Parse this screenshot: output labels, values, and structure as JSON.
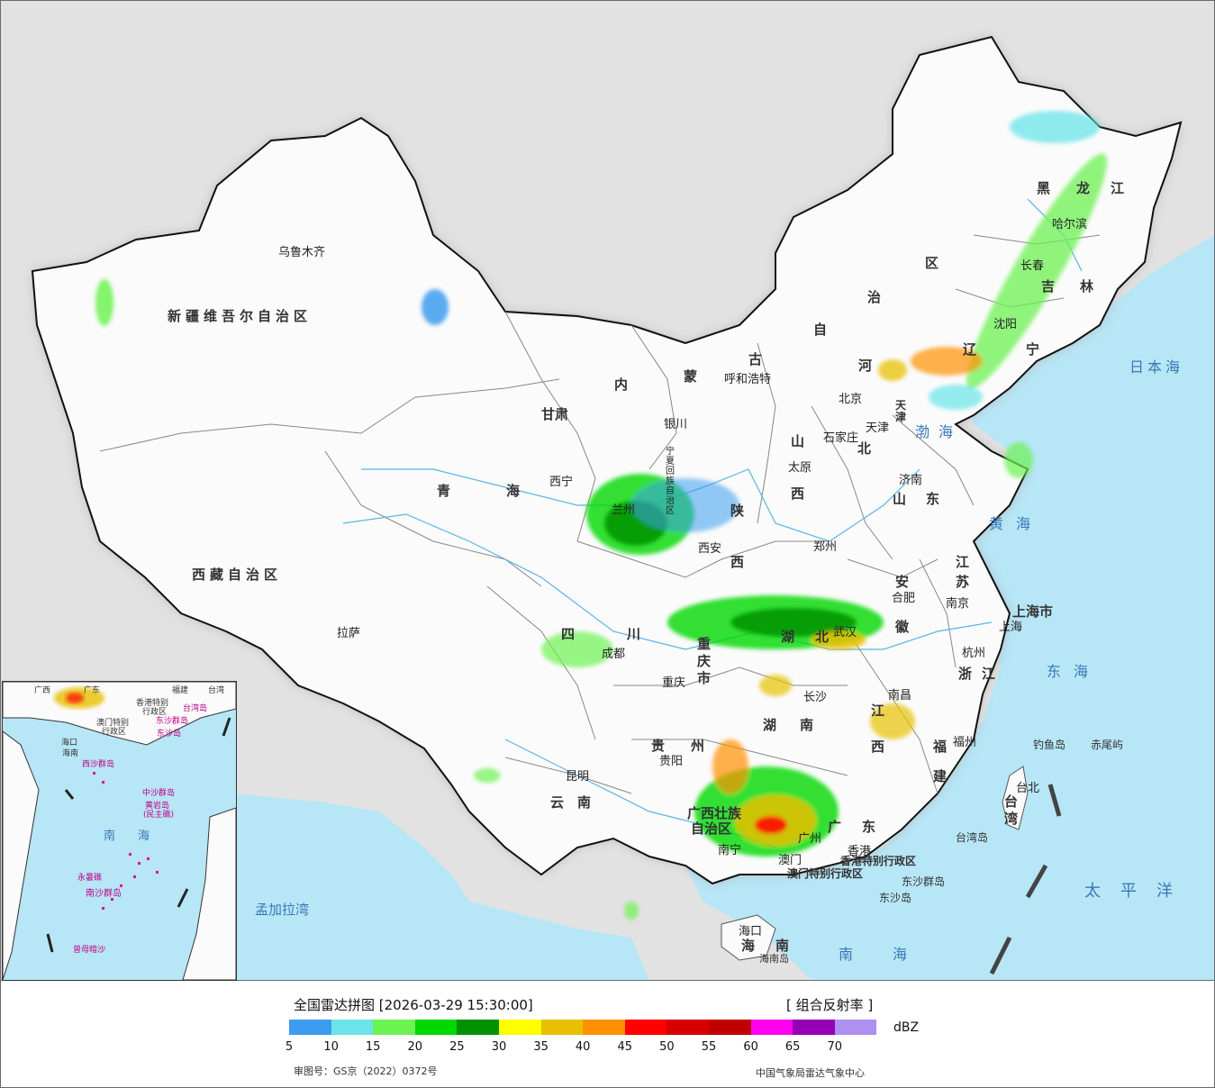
{
  "map": {
    "provinces": [
      "新疆维吾尔自治区",
      "西藏自治区",
      "青海",
      "甘肃",
      "内",
      "蒙",
      "古",
      "自",
      "治",
      "区",
      "黑",
      "龙",
      "江",
      "吉",
      "林",
      "辽",
      "宁",
      "河",
      "北",
      "山",
      "西",
      "陕",
      "西",
      "宁夏回族自治区",
      "四",
      "川",
      "重庆市",
      "湖",
      "北",
      "湖",
      "南",
      "江",
      "西",
      "安",
      "徽",
      "浙",
      "江",
      "福",
      "建",
      "广",
      "东",
      "广西壮族",
      "自治区",
      "贵",
      "州",
      "云",
      "南",
      "江",
      "苏",
      "山",
      "东",
      "台湾",
      "海",
      "南",
      "上海市",
      "天津"
    ],
    "cities": [
      "乌鲁木齐",
      "拉萨",
      "西宁",
      "兰州",
      "银川",
      "呼和浩特",
      "北京",
      "天津",
      "石家庄",
      "太原",
      "济南",
      "西安",
      "郑州",
      "合肥",
      "南京",
      "上海",
      "杭州",
      "武汉",
      "成都",
      "重庆",
      "长沙",
      "南昌",
      "福州",
      "台北",
      "贵阳",
      "昆明",
      "南宁",
      "广州",
      "澳门",
      "香港",
      "海口",
      "沈阳",
      "长春",
      "哈尔滨"
    ],
    "seas": {
      "japan_sea": "日本海",
      "bohai": "渤海",
      "yellow_sea": "黄海",
      "east_sea": "东海",
      "pacific": "太平洋",
      "south_sea": "南海",
      "bengal": "孟加拉湾"
    },
    "islands": {
      "diaoyu": "钓鱼岛",
      "chiwei": "赤尾屿",
      "taiwan_island": "台湾岛",
      "dongsha": "东沙群岛",
      "dongsha_island": "东沙岛",
      "hainan_island": "海南岛",
      "hk_sar": "香港特别行政区",
      "macau_sar": "澳门特别行政区"
    },
    "inset": {
      "labels": [
        "广西",
        "广东",
        "福建",
        "台湾",
        "香港特别",
        "行政区",
        "澳门特别",
        "行政区",
        "东沙群岛",
        "台湾岛",
        "海口",
        "海南",
        "西沙群岛",
        "中沙群岛",
        "黄岩岛",
        "(民主礁)",
        "南",
        "海",
        "永暑礁",
        "南沙群岛",
        "曾母暗沙",
        "东沙岛"
      ]
    }
  },
  "legend": {
    "title": "全国雷达拼图 [2026-03-29 15:30:00]",
    "product": "[ 组合反射率 ]",
    "unit": "dBZ",
    "ticks": [
      "5",
      "10",
      "15",
      "20",
      "25",
      "30",
      "35",
      "40",
      "45",
      "50",
      "55",
      "60",
      "65",
      "70"
    ],
    "colors": [
      "#3d9cf0",
      "#6ae4e8",
      "#6cf252",
      "#00d800",
      "#009200",
      "#ffff00",
      "#e7c000",
      "#ff9000",
      "#ff0000",
      "#d60000",
      "#c00000",
      "#ff00f0",
      "#9600b4",
      "#ad90f0"
    ],
    "approval": "审图号：GS京（2022）0372号",
    "credit": "中国气象局雷达气象中心"
  }
}
